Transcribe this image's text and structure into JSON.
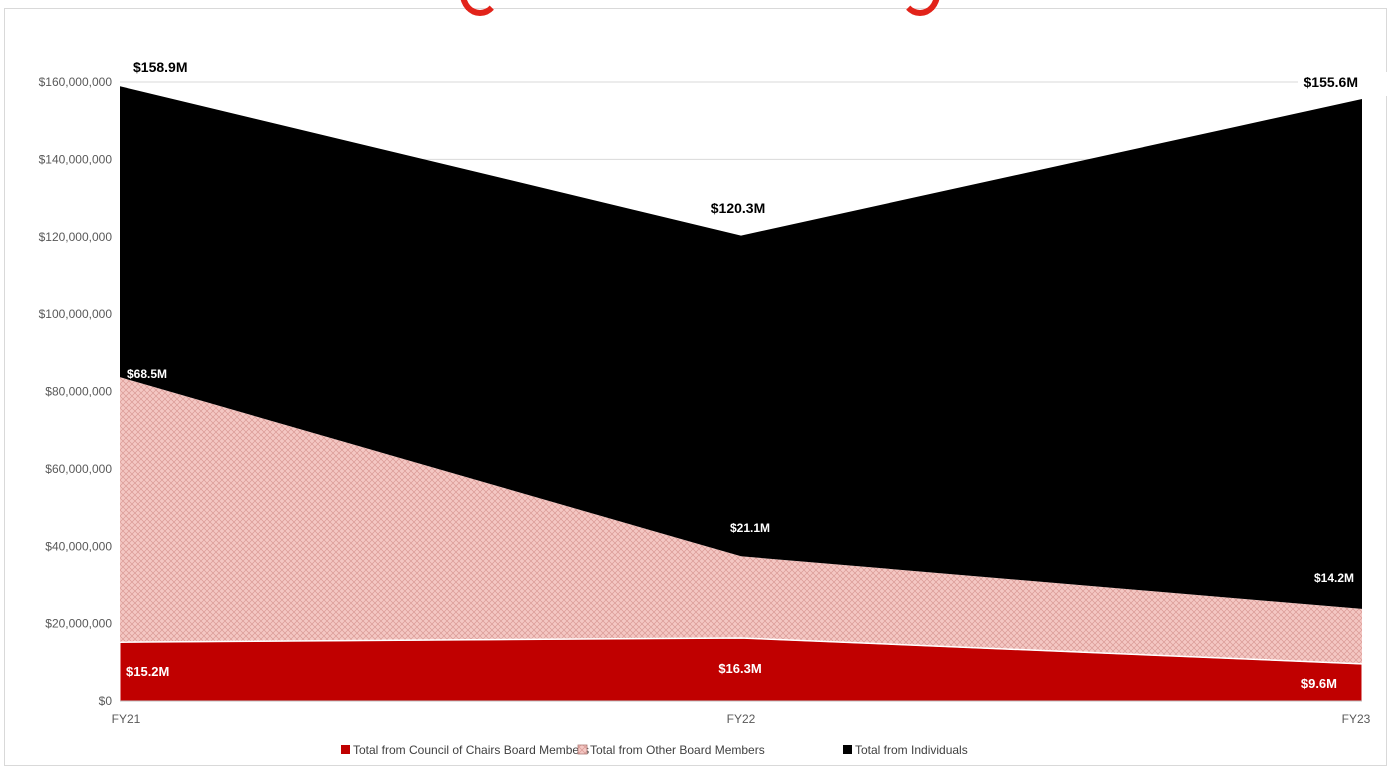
{
  "chart_data": {
    "type": "area",
    "stacked": true,
    "categories": [
      "FY21",
      "FY22",
      "FY23"
    ],
    "series": [
      {
        "name": "Total from Council of Chairs Board Members",
        "values": [
          15200000,
          16300000,
          9600000
        ],
        "labels": [
          "$15.2M",
          "$16.3M",
          "$9.6M"
        ],
        "color": "#c00000"
      },
      {
        "name": "Total from Other Board Members",
        "values": [
          68500000,
          21100000,
          14200000
        ],
        "labels": [
          "$68.5M",
          "$21.1M",
          "$14.2M"
        ],
        "color": "#f4c7c3",
        "pattern": "crosshatch"
      },
      {
        "name": "Total from Individuals",
        "values": [
          75200000,
          82900000,
          131800000
        ],
        "labels": [
          "$158.9M",
          "$120.3M",
          "$155.6M"
        ],
        "color": "#000000"
      }
    ],
    "y_ticks": [
      "$0",
      "$20,000,000",
      "$40,000,000",
      "$60,000,000",
      "$80,000,000",
      "$100,000,000",
      "$120,000,000",
      "$140,000,000",
      "$160,000,000"
    ],
    "ylim": [
      0,
      160000000
    ],
    "grid": true,
    "legend_position": "bottom",
    "xlabel": "",
    "ylabel": ""
  }
}
